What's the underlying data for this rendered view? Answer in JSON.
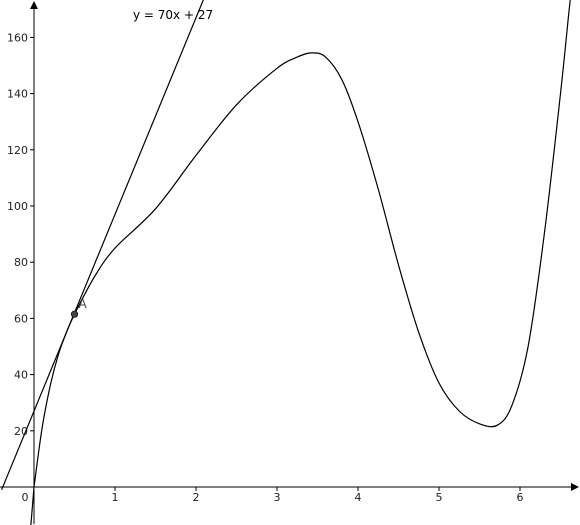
{
  "chart_data": {
    "type": "line",
    "title": "",
    "xlabel": "",
    "ylabel": "",
    "xlim": [
      -0.4,
      6.75
    ],
    "ylim": [
      -11,
      175
    ],
    "grid": false,
    "x_ticks": [
      "0",
      "1",
      "2",
      "3",
      "4",
      "5",
      "6"
    ],
    "x_tick_values": [
      0,
      1,
      2,
      3,
      4,
      5,
      6
    ],
    "y_ticks": [
      "20",
      "40",
      "60",
      "80",
      "100",
      "120",
      "140",
      "160"
    ],
    "y_tick_values": [
      20,
      40,
      60,
      80,
      100,
      120,
      140,
      160
    ],
    "series": [
      {
        "kind": "curve",
        "points": [
          [
            0,
            0
          ],
          [
            0.1,
            21
          ],
          [
            0.2,
            36
          ],
          [
            0.3,
            47
          ],
          [
            0.4,
            55
          ],
          [
            0.5,
            61.5
          ],
          [
            0.75,
            75
          ],
          [
            1,
            85
          ],
          [
            1.5,
            99
          ],
          [
            2,
            118
          ],
          [
            2.5,
            136
          ],
          [
            3,
            149
          ],
          [
            3.25,
            153
          ],
          [
            3.43,
            154.5
          ],
          [
            3.6,
            153
          ],
          [
            3.8,
            145
          ],
          [
            4,
            130
          ],
          [
            4.25,
            106
          ],
          [
            4.5,
            79
          ],
          [
            4.75,
            55
          ],
          [
            5,
            37
          ],
          [
            5.25,
            27
          ],
          [
            5.5,
            22.5
          ],
          [
            5.72,
            22
          ],
          [
            5.9,
            29
          ],
          [
            6.1,
            50
          ],
          [
            6.3,
            90
          ],
          [
            6.5,
            140
          ],
          [
            6.6,
            168
          ]
        ]
      },
      {
        "kind": "tangent-line",
        "label": "y = 70x + 27",
        "slope": 70,
        "intercept": 27
      }
    ],
    "points": [
      {
        "label": "A",
        "x": 0.5,
        "y": 61.5
      }
    ]
  }
}
